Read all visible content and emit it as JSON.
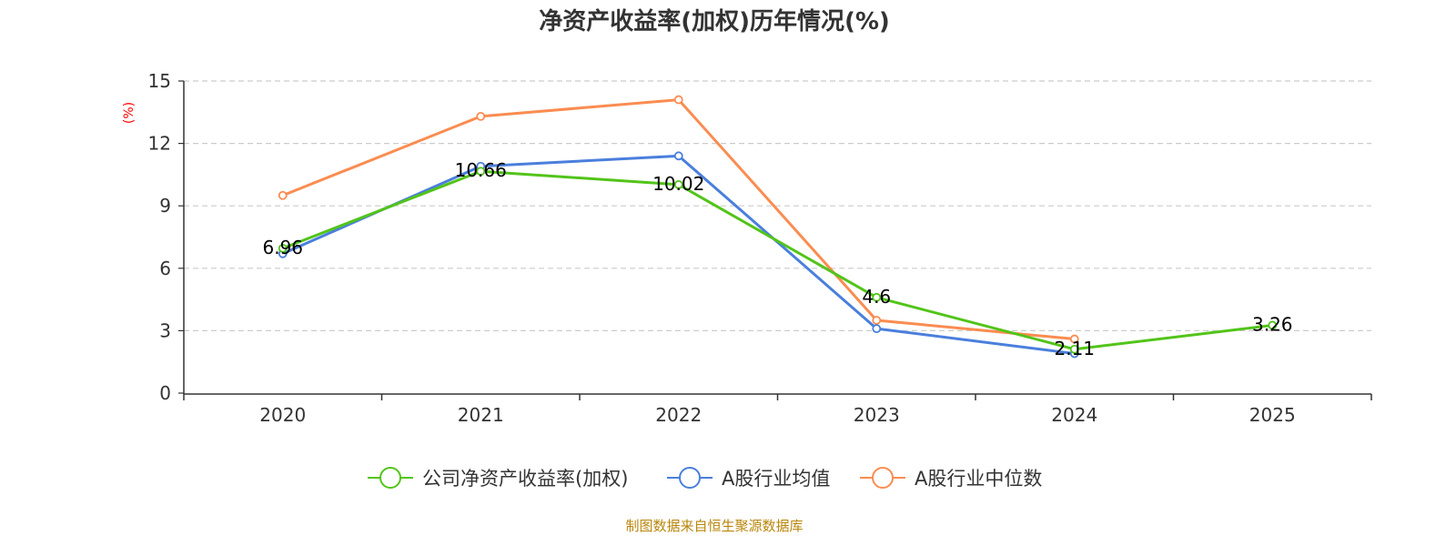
{
  "chart_data": {
    "type": "line",
    "title": "净资产收益率(加权)历年情况(%)",
    "ylabel": "(%)",
    "xlabel": "",
    "categories": [
      "2020",
      "2021",
      "2022",
      "2023",
      "2024",
      "2025"
    ],
    "ylim": [
      0,
      15
    ],
    "yticks": [
      0,
      3,
      6,
      9,
      12,
      15
    ],
    "grid": true,
    "legend_position": "bottom",
    "series": [
      {
        "name": "公司净资产收益率(加权)",
        "color": "#52c41a",
        "values": [
          6.96,
          10.66,
          10.02,
          4.6,
          2.11,
          3.26
        ],
        "labels": [
          "6.96",
          "10.66",
          "10.02",
          "4.6",
          "2.11",
          "3.26"
        ]
      },
      {
        "name": "A股行业均值",
        "color": "#4a7fdc",
        "values": [
          6.7,
          10.9,
          11.4,
          3.1,
          1.9,
          null
        ]
      },
      {
        "name": "A股行业中位数",
        "color": "#fa8c50",
        "values": [
          9.5,
          13.3,
          14.1,
          3.5,
          2.6,
          null
        ]
      }
    ],
    "source": "制图数据来自恒生聚源数据库"
  }
}
